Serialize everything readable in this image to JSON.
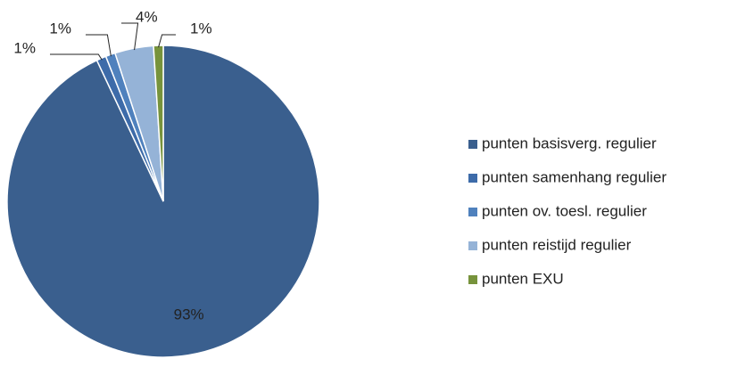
{
  "chart_data": {
    "type": "pie",
    "categories": [
      "punten basisverg. regulier",
      "punten samenhang regulier",
      "punten ov. toesl. regulier",
      "punten reistijd regulier",
      "punten EXU"
    ],
    "values": [
      93,
      1,
      1,
      4,
      1
    ],
    "value_labels": [
      "93%",
      "1%",
      "1%",
      "4%",
      "1%"
    ],
    "colors": [
      "#3a5f8e",
      "#3d6ba9",
      "#4f81bd",
      "#95b3d7",
      "#77933c"
    ],
    "legend": "right"
  }
}
